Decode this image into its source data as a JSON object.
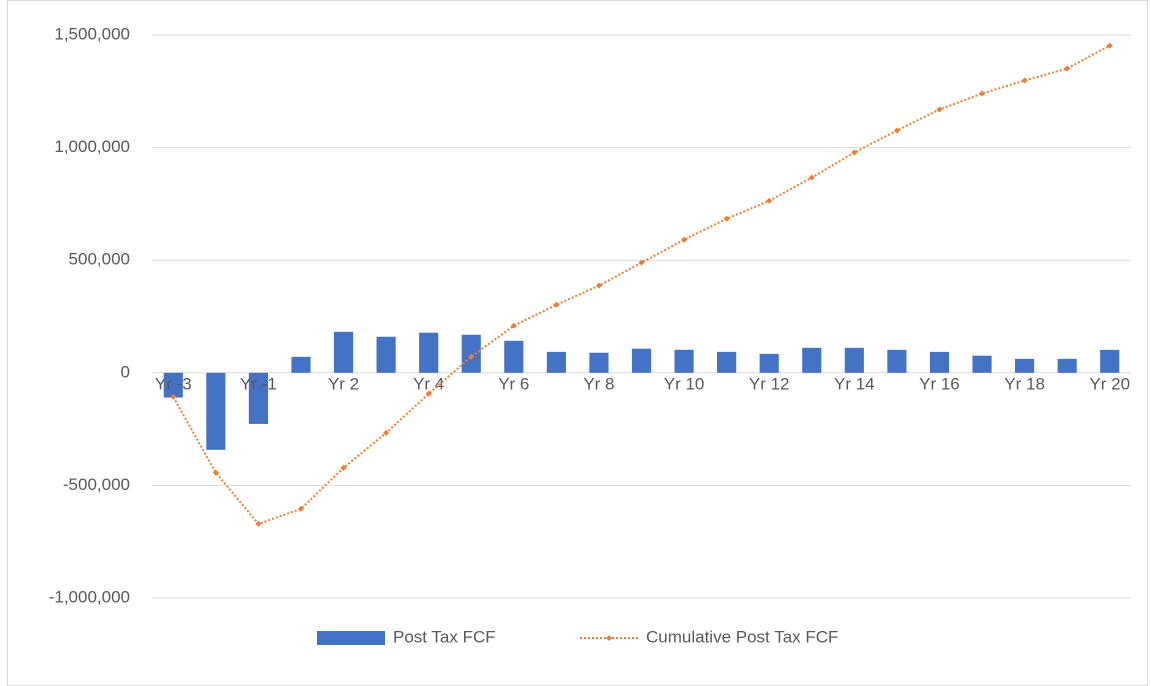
{
  "chart_data": {
    "type": "bar-line",
    "categories": [
      "Yr -3",
      null,
      "Yr -1",
      null,
      "Yr 2",
      null,
      "Yr 4",
      null,
      "Yr 6",
      null,
      "Yr 8",
      null,
      "Yr 10",
      null,
      "Yr 12",
      null,
      "Yr 14",
      null,
      "Yr 16",
      null,
      "Yr 18",
      null,
      "Yr 20"
    ],
    "series": [
      {
        "name": "Post Tax FCF",
        "type": "bar",
        "color": "#4472c4",
        "values": [
          -110000,
          -342000,
          -227000,
          71000,
          182000,
          160000,
          178000,
          169000,
          142000,
          93000,
          89000,
          107000,
          102000,
          93000,
          84000,
          111000,
          111000,
          102000,
          93000,
          76000,
          62000,
          62000,
          102000
        ]
      },
      {
        "name": "Cumulative Post Tax FCF",
        "type": "line",
        "color": "#ed7d31",
        "values": [
          -107000,
          -444000,
          -671000,
          -604000,
          -422000,
          -267000,
          -93000,
          71000,
          209000,
          302000,
          387000,
          489000,
          591000,
          684000,
          764000,
          867000,
          978000,
          1076000,
          1169000,
          1240000,
          1298000,
          1351000,
          1453000
        ]
      }
    ],
    "ylim": [
      -1000000,
      1500000
    ],
    "yticks": [
      {
        "value": -1000000,
        "label": "-1,000,000"
      },
      {
        "value": -500000,
        "label": "-500,000"
      },
      0,
      {
        "value": 500000,
        "label": "500,000"
      },
      {
        "value": 1000000,
        "label": "1,000,000"
      },
      {
        "value": 1500000,
        "label": "1,500,000"
      }
    ],
    "grid": true,
    "legend": "bottom"
  }
}
